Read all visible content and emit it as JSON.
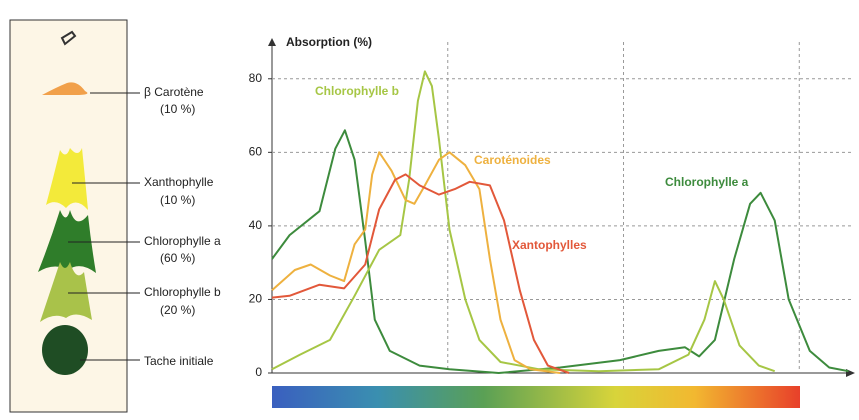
{
  "strip": {
    "bands": [
      {
        "label": "β Carotène",
        "share": "(10 %)"
      },
      {
        "label": "Xanthophylle",
        "share": "(10 %)"
      },
      {
        "label": "Chlorophylle a",
        "share": "(60 %)"
      },
      {
        "label": "Chlorophylle b",
        "share": "(20 %)"
      },
      {
        "label": "Tache initiale"
      }
    ]
  },
  "chart_data": {
    "type": "line",
    "y_label": "Absorption (%)",
    "xlim": [
      400,
      730
    ],
    "x_gridlines": [
      500,
      600,
      700
    ],
    "ylim": [
      0,
      90
    ],
    "yticks": [
      0,
      20,
      40,
      60,
      80
    ],
    "grid": true,
    "series": [
      {
        "name": "Chlorophylle a",
        "color": "#3d8b3d",
        "x": [
          400,
          410,
          427,
          436,
          441.5,
          447,
          453,
          458.5,
          467,
          484,
          501,
          529,
          564,
          598,
          620,
          635,
          643,
          652,
          663,
          672,
          678,
          686,
          694,
          706,
          717,
          728
        ],
        "values": [
          31,
          37.5,
          44,
          61,
          66,
          58,
          36,
          14.5,
          6,
          2,
          1,
          0,
          1.5,
          3.5,
          6,
          7,
          4.5,
          9,
          31,
          46,
          49,
          41.5,
          20,
          6,
          1.5,
          0.5
        ]
      },
      {
        "name": "Chlorophylle b",
        "color": "#a6c645",
        "x": [
          400,
          416,
          433,
          447,
          461,
          473,
          478,
          483,
          487,
          491,
          495,
          501,
          510,
          518,
          530,
          552,
          586,
          620,
          637,
          646,
          652,
          657,
          666,
          677,
          686
        ],
        "values": [
          1,
          5,
          9,
          21,
          33.5,
          37.5,
          52.5,
          74,
          82,
          78,
          63.5,
          39,
          20,
          9,
          3,
          1,
          0.5,
          1,
          5,
          14.5,
          25,
          20,
          7.5,
          2,
          0.5
        ]
      },
      {
        "name": "Caroténoides",
        "color": "#eeb13f",
        "x": [
          400,
          413,
          422,
          433,
          441,
          447,
          453,
          457,
          461,
          468,
          476,
          481,
          487,
          495,
          501,
          510,
          518,
          524,
          530,
          538,
          547,
          564
        ],
        "values": [
          22.5,
          28,
          29.5,
          26.5,
          25,
          35,
          39,
          54,
          60,
          55,
          47,
          46,
          51,
          58,
          60,
          56.5,
          50,
          31,
          14.5,
          3.5,
          1,
          0
        ]
      },
      {
        "name": "Xantophylles",
        "color": "#e2583a",
        "x": [
          400,
          410,
          427,
          441,
          453,
          461,
          470,
          476,
          484,
          495,
          504,
          512.5,
          524,
          532,
          541,
          549,
          557,
          569
        ],
        "values": [
          20.5,
          21,
          24,
          23,
          29.5,
          44.5,
          52.5,
          54,
          51,
          48.5,
          50,
          52,
          51,
          41.5,
          22.5,
          9,
          2,
          0
        ]
      }
    ]
  }
}
